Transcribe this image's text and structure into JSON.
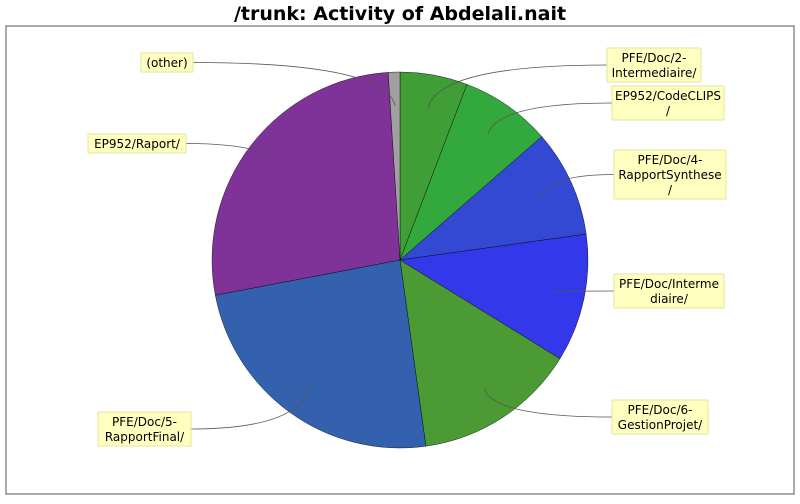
{
  "chart_data": {
    "type": "pie",
    "title": "/trunk: Activity of Abdelali.nait",
    "slices": [
      {
        "label": "PFE/Doc/2-Intermediaire/",
        "lines": [
          "PFE/Doc/2-",
          "Intermediaire/"
        ],
        "value": 5.8,
        "color": "#3f9e35",
        "side": "right"
      },
      {
        "label": "EP952/CodeCLIPS/",
        "lines": [
          "EP952/CodeCLIPS",
          "/"
        ],
        "value": 7.8,
        "color": "#33a83d",
        "side": "right"
      },
      {
        "label": "PFE/Doc/4-RapportSynthese/",
        "lines": [
          "PFE/Doc/4-",
          "RapportSynthese",
          "/"
        ],
        "value": 9.2,
        "color": "#3349d4",
        "side": "right"
      },
      {
        "label": "PFE/Doc/Intermediaire/",
        "lines": [
          "PFE/Doc/Interme",
          "diaire/"
        ],
        "value": 11.0,
        "color": "#3339ea",
        "side": "right"
      },
      {
        "label": "PFE/Doc/6-GestionProjet/",
        "lines": [
          "PFE/Doc/6-",
          "GestionProjet/"
        ],
        "value": 14.0,
        "color": "#4b9a33",
        "side": "right"
      },
      {
        "label": "PFE/Doc/5-RapportFinal/",
        "lines": [
          "PFE/Doc/5-",
          "RapportFinal/"
        ],
        "value": 24.2,
        "color": "#3461ad",
        "side": "left"
      },
      {
        "label": "EP952/Raport/",
        "lines": [
          "EP952/Raport/"
        ],
        "value": 27.0,
        "color": "#7f3399",
        "side": "left"
      },
      {
        "label": "(other)",
        "lines": [
          "(other)"
        ],
        "value": 1.0,
        "color": "#a0a0a0",
        "side": "left"
      }
    ]
  }
}
